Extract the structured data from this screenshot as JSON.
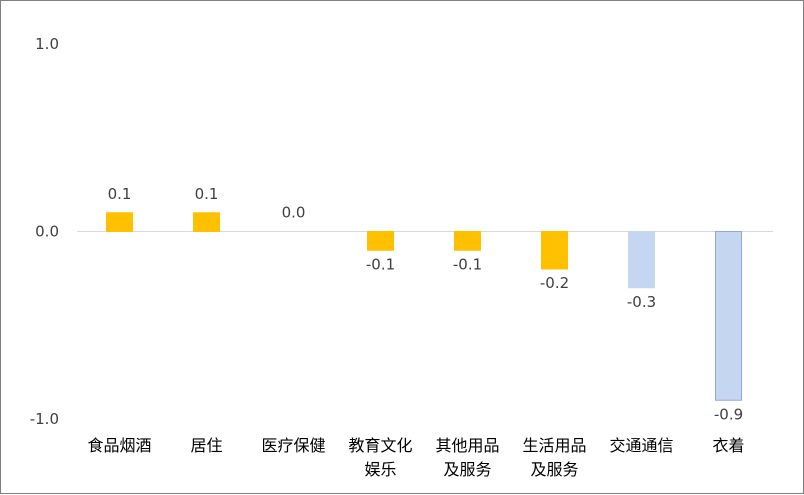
{
  "chart_data": {
    "type": "bar",
    "title": "",
    "xlabel": "",
    "ylabel": "",
    "ylim": [
      -1.0,
      1.0
    ],
    "yticks": [
      "1.0",
      "0.0",
      "-1.0"
    ],
    "grid": "zero-line only",
    "categories": [
      [
        "食品烟酒"
      ],
      [
        "居住"
      ],
      [
        "医疗保健"
      ],
      [
        "教育文化",
        "娱乐"
      ],
      [
        "其他用品",
        "及服务"
      ],
      [
        "生活用品",
        "及服务"
      ],
      [
        "交通通信"
      ],
      [
        "衣着"
      ]
    ],
    "values": [
      0.1,
      0.1,
      0.0,
      -0.1,
      -0.1,
      -0.2,
      -0.3,
      -0.9
    ],
    "labels": [
      "0.1",
      "0.1",
      "0.0",
      "-0.1",
      "-0.1",
      "-0.2",
      "-0.3",
      "-0.9"
    ],
    "bar_colors": [
      "#ffc000",
      "#ffc000",
      "#ffc000",
      "#ffc000",
      "#ffc000",
      "#ffc000",
      "#c5d7f0",
      "#c5d7f0"
    ],
    "bar_border_colors": [
      "#ffc000",
      "#ffc000",
      "#ffc000",
      "#ffc000",
      "#ffc000",
      "#ffc000",
      "#c5d7f0",
      "#8eaadb"
    ]
  }
}
